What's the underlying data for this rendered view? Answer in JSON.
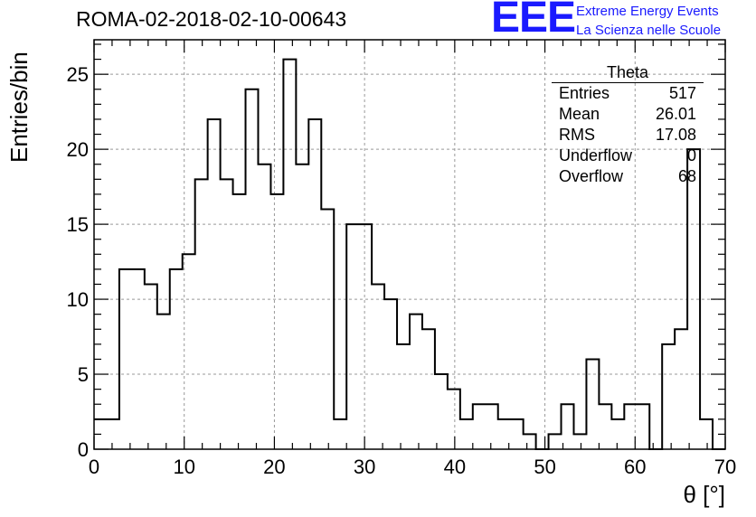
{
  "title": "ROMA-02-2018-02-10-00643",
  "brand": {
    "logo": "EEE",
    "line1": "Extreme Energy Events",
    "line2": "La Scienza nelle Scuole",
    "color": "#1a1aff"
  },
  "stats": {
    "title": "Theta",
    "rows": [
      {
        "label": "Entries",
        "value": "517"
      },
      {
        "label": "Mean",
        "value": "26.01"
      },
      {
        "label": "RMS",
        "value": "17.08"
      },
      {
        "label": "Underflow",
        "value": "0"
      },
      {
        "label": "Overflow",
        "value": "68"
      }
    ]
  },
  "chart_data": {
    "type": "bar",
    "histogram": true,
    "bin_width": 1.4,
    "bin_edges_start": 0,
    "values": [
      2,
      2,
      12,
      12,
      11,
      9,
      12,
      13,
      18,
      22,
      18,
      17,
      24,
      19,
      17,
      26,
      19,
      22,
      16,
      2,
      15,
      15,
      11,
      10,
      7,
      9,
      8,
      5,
      4,
      2,
      3,
      3,
      2,
      2,
      1,
      0,
      1,
      3,
      1,
      6,
      3,
      2,
      3,
      3,
      0,
      7,
      8,
      20,
      2,
      0
    ],
    "xlabel": "θ [°]",
    "ylabel": "Entries/bin",
    "xlim": [
      0,
      70
    ],
    "ylim": [
      0,
      27.3
    ],
    "xticks": [
      0,
      10,
      20,
      30,
      40,
      50,
      60,
      70
    ],
    "yticks": [
      0,
      5,
      10,
      15,
      20,
      25
    ],
    "grid": true,
    "line_color": "#000000",
    "grid_color": "#999999"
  }
}
